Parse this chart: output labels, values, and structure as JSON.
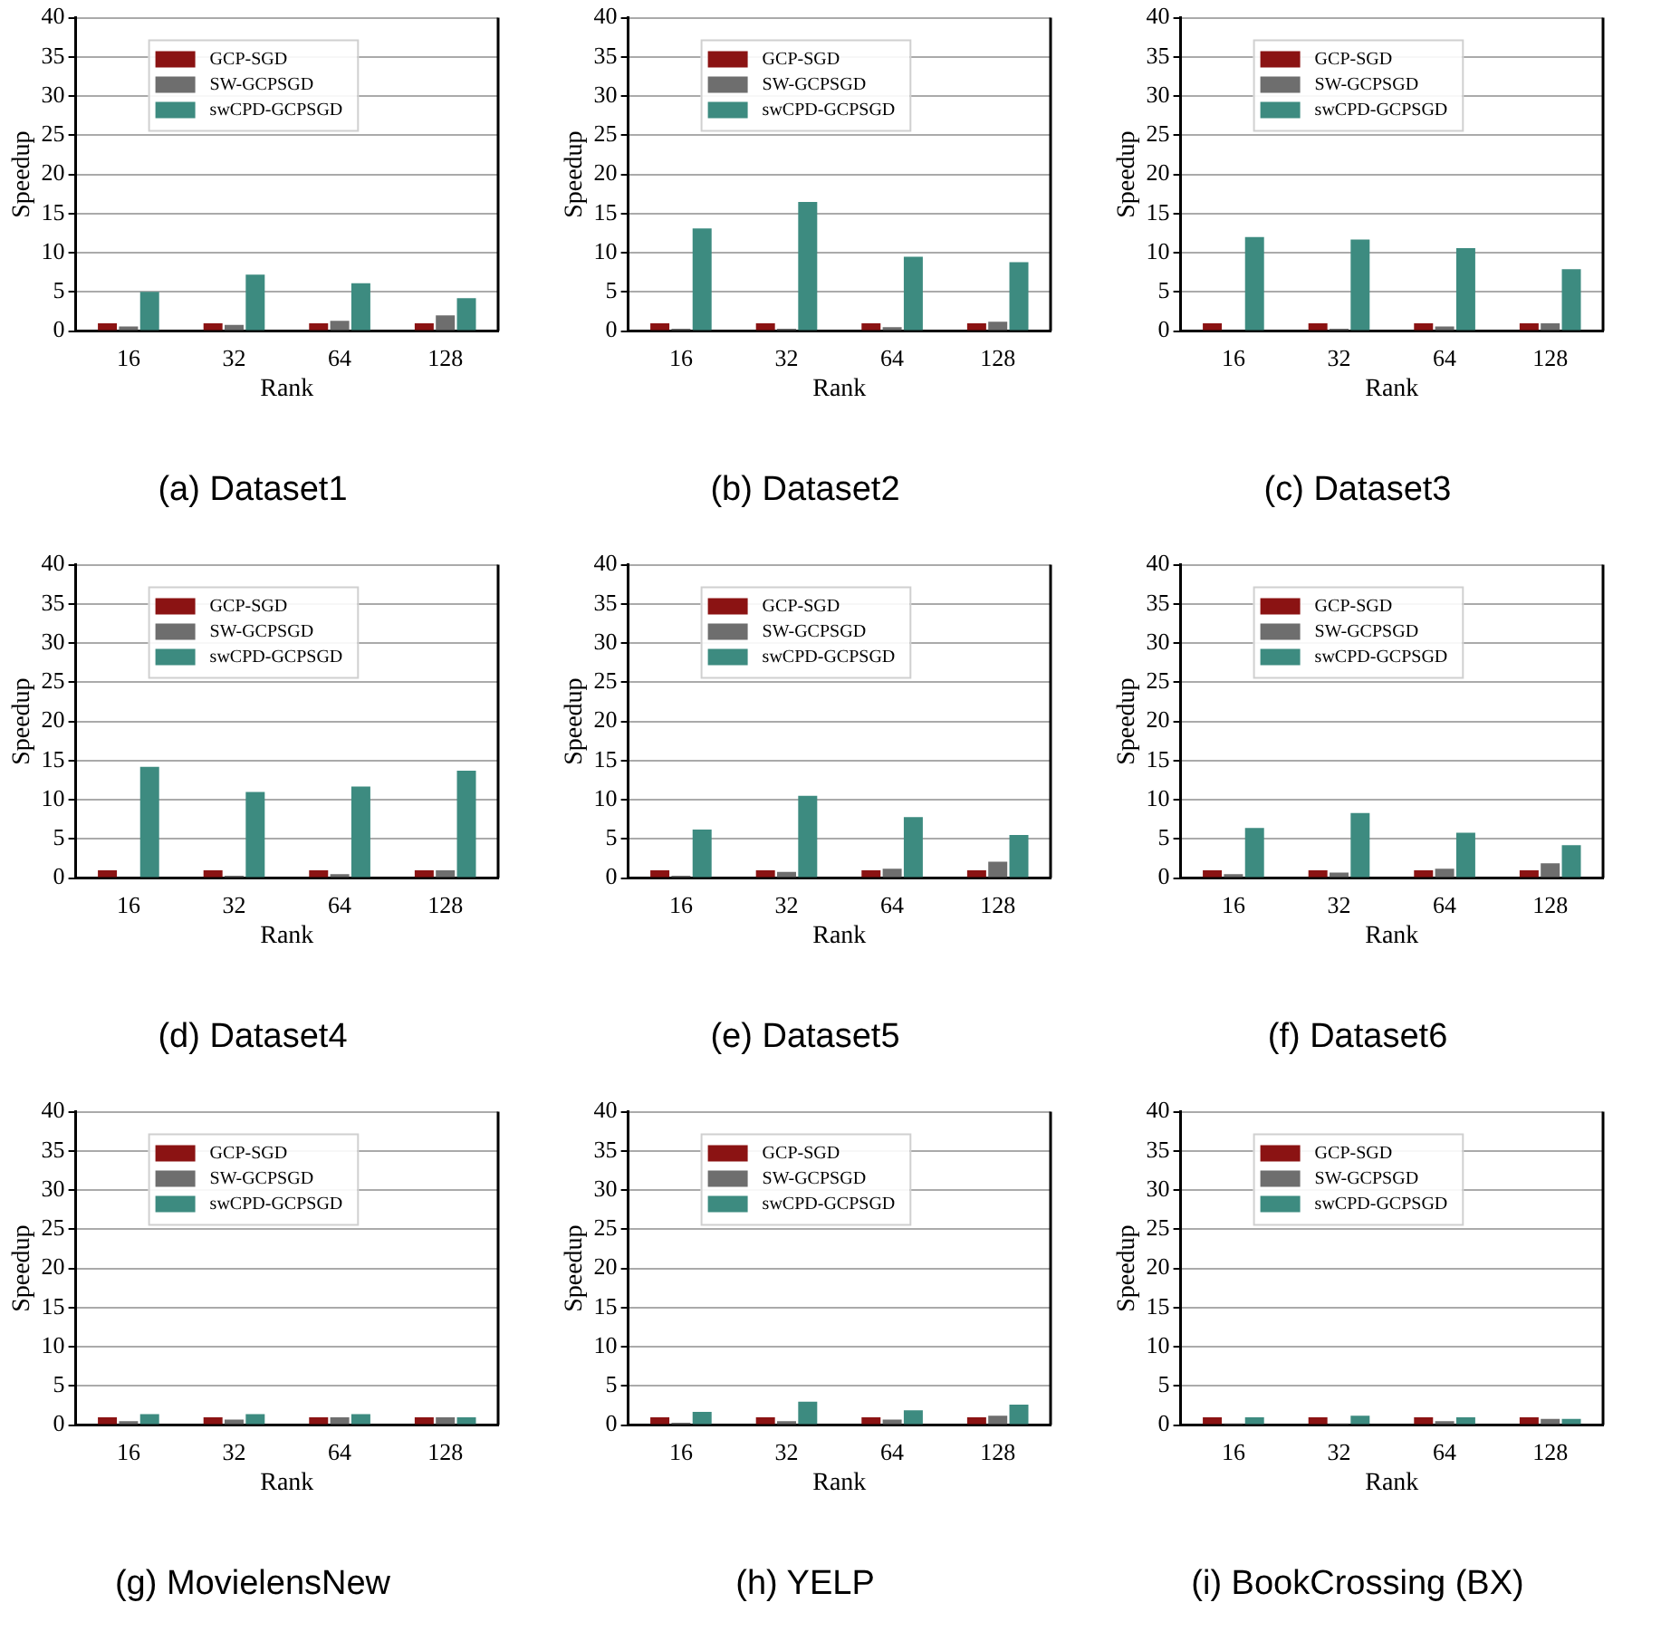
{
  "chart_data": [
    {
      "type": "bar",
      "title": "(a) Dataset1",
      "xlabel": "Rank",
      "ylabel": "Speedup",
      "categories": [
        "16",
        "32",
        "64",
        "128"
      ],
      "series": [
        {
          "name": "GCP-SGD",
          "color": "#8b1313",
          "values": [
            1,
            1,
            1,
            1
          ]
        },
        {
          "name": "SW-GCPSGD",
          "color": "#6e6e6e",
          "values": [
            0.6,
            0.8,
            1.3,
            2.0
          ]
        },
        {
          "name": "swCPD-GCPSGD",
          "color": "#3d8b80",
          "values": [
            5.0,
            7.2,
            6.1,
            4.2
          ]
        }
      ],
      "ylim": [
        0,
        40
      ],
      "yticks": [
        0,
        5,
        10,
        15,
        20,
        25,
        30,
        35,
        40
      ],
      "grid": "y",
      "legend": "top left"
    },
    {
      "type": "bar",
      "title": "(b) Dataset2",
      "xlabel": "Rank",
      "ylabel": "Speedup",
      "categories": [
        "16",
        "32",
        "64",
        "128"
      ],
      "series": [
        {
          "name": "GCP-SGD",
          "color": "#8b1313",
          "values": [
            1,
            1,
            1,
            1
          ]
        },
        {
          "name": "SW-GCPSGD",
          "color": "#6e6e6e",
          "values": [
            0.3,
            0.3,
            0.5,
            1.2
          ]
        },
        {
          "name": "swCPD-GCPSGD",
          "color": "#3d8b80",
          "values": [
            13.1,
            16.5,
            9.5,
            8.8
          ]
        }
      ],
      "ylim": [
        0,
        40
      ],
      "yticks": [
        0,
        5,
        10,
        15,
        20,
        25,
        30,
        35,
        40
      ],
      "grid": "y",
      "legend": "top left"
    },
    {
      "type": "bar",
      "title": "(c) Dataset3",
      "xlabel": "Rank",
      "ylabel": "Speedup",
      "categories": [
        "16",
        "32",
        "64",
        "128"
      ],
      "series": [
        {
          "name": "GCP-SGD",
          "color": "#8b1313",
          "values": [
            1,
            1,
            1,
            1
          ]
        },
        {
          "name": "SW-GCPSGD",
          "color": "#6e6e6e",
          "values": [
            null,
            0.3,
            0.6,
            1.0
          ]
        },
        {
          "name": "swCPD-GCPSGD",
          "color": "#3d8b80",
          "values": [
            12.0,
            11.7,
            10.6,
            7.9
          ]
        }
      ],
      "ylim": [
        0,
        40
      ],
      "yticks": [
        0,
        5,
        10,
        15,
        20,
        25,
        30,
        35,
        40
      ],
      "grid": "y",
      "legend": "top left"
    },
    {
      "type": "bar",
      "title": "(d) Dataset4",
      "xlabel": "Rank",
      "ylabel": "Speedup",
      "categories": [
        "16",
        "32",
        "64",
        "128"
      ],
      "series": [
        {
          "name": "GCP-SGD",
          "color": "#8b1313",
          "values": [
            1,
            1,
            1,
            1
          ]
        },
        {
          "name": "SW-GCPSGD",
          "color": "#6e6e6e",
          "values": [
            null,
            0.3,
            0.5,
            1.0
          ]
        },
        {
          "name": "swCPD-GCPSGD",
          "color": "#3d8b80",
          "values": [
            14.2,
            11.0,
            11.7,
            13.7
          ]
        }
      ],
      "ylim": [
        0,
        40
      ],
      "yticks": [
        0,
        5,
        10,
        15,
        20,
        25,
        30,
        35,
        40
      ],
      "grid": "y",
      "legend": "top left"
    },
    {
      "type": "bar",
      "title": "(e) Dataset5",
      "xlabel": "Rank",
      "ylabel": "Speedup",
      "categories": [
        "16",
        "32",
        "64",
        "128"
      ],
      "series": [
        {
          "name": "GCP-SGD",
          "color": "#8b1313",
          "values": [
            1,
            1,
            1,
            1
          ]
        },
        {
          "name": "SW-GCPSGD",
          "color": "#6e6e6e",
          "values": [
            0.3,
            0.8,
            1.2,
            2.1
          ]
        },
        {
          "name": "swCPD-GCPSGD",
          "color": "#3d8b80",
          "values": [
            6.2,
            10.5,
            7.8,
            5.5
          ]
        }
      ],
      "ylim": [
        0,
        40
      ],
      "yticks": [
        0,
        5,
        10,
        15,
        20,
        25,
        30,
        35,
        40
      ],
      "grid": "y",
      "legend": "top left"
    },
    {
      "type": "bar",
      "title": "(f) Dataset6",
      "xlabel": "Rank",
      "ylabel": "Speedup",
      "categories": [
        "16",
        "32",
        "64",
        "128"
      ],
      "series": [
        {
          "name": "GCP-SGD",
          "color": "#8b1313",
          "values": [
            1,
            1,
            1,
            1
          ]
        },
        {
          "name": "SW-GCPSGD",
          "color": "#6e6e6e",
          "values": [
            0.5,
            0.7,
            1.2,
            1.9
          ]
        },
        {
          "name": "swCPD-GCPSGD",
          "color": "#3d8b80",
          "values": [
            6.4,
            8.3,
            5.8,
            4.2
          ]
        }
      ],
      "ylim": [
        0,
        40
      ],
      "yticks": [
        0,
        5,
        10,
        15,
        20,
        25,
        30,
        35,
        40
      ],
      "grid": "y",
      "legend": "top left"
    },
    {
      "type": "bar",
      "title": "(g) MovielensNew",
      "xlabel": "Rank",
      "ylabel": "Speedup",
      "categories": [
        "16",
        "32",
        "64",
        "128"
      ],
      "series": [
        {
          "name": "GCP-SGD",
          "color": "#8b1313",
          "values": [
            1,
            1,
            1,
            1
          ]
        },
        {
          "name": "SW-GCPSGD",
          "color": "#6e6e6e",
          "values": [
            0.5,
            0.7,
            1.0,
            1.0
          ]
        },
        {
          "name": "swCPD-GCPSGD",
          "color": "#3d8b80",
          "values": [
            1.4,
            1.4,
            1.4,
            1.0
          ]
        }
      ],
      "ylim": [
        0,
        40
      ],
      "yticks": [
        0,
        5,
        10,
        15,
        20,
        25,
        30,
        35,
        40
      ],
      "grid": "y",
      "legend": "top left"
    },
    {
      "type": "bar",
      "title": "(h) YELP",
      "xlabel": "Rank",
      "ylabel": "Speedup",
      "categories": [
        "16",
        "32",
        "64",
        "128"
      ],
      "series": [
        {
          "name": "GCP-SGD",
          "color": "#8b1313",
          "values": [
            1,
            1,
            1,
            1
          ]
        },
        {
          "name": "SW-GCPSGD",
          "color": "#6e6e6e",
          "values": [
            0.3,
            0.5,
            0.7,
            1.2
          ]
        },
        {
          "name": "swCPD-GCPSGD",
          "color": "#3d8b80",
          "values": [
            1.7,
            3.0,
            1.9,
            2.6
          ]
        }
      ],
      "ylim": [
        0,
        40
      ],
      "yticks": [
        0,
        5,
        10,
        15,
        20,
        25,
        30,
        35,
        40
      ],
      "grid": "y",
      "legend": "top left"
    },
    {
      "type": "bar",
      "title": "(i) BookCrossing (BX)",
      "xlabel": "Rank",
      "ylabel": "Speedup",
      "categories": [
        "16",
        "32",
        "64",
        "128"
      ],
      "series": [
        {
          "name": "GCP-SGD",
          "color": "#8b1313",
          "values": [
            1,
            1,
            1,
            1
          ]
        },
        {
          "name": "SW-GCPSGD",
          "color": "#6e6e6e",
          "values": [
            0.2,
            0.2,
            0.5,
            0.8
          ]
        },
        {
          "name": "swCPD-GCPSGD",
          "color": "#3d8b80",
          "values": [
            1.0,
            1.2,
            1.0,
            0.8
          ]
        }
      ],
      "ylim": [
        0,
        40
      ],
      "yticks": [
        0,
        5,
        10,
        15,
        20,
        25,
        30,
        35,
        40
      ],
      "grid": "y",
      "legend": "top left"
    }
  ]
}
